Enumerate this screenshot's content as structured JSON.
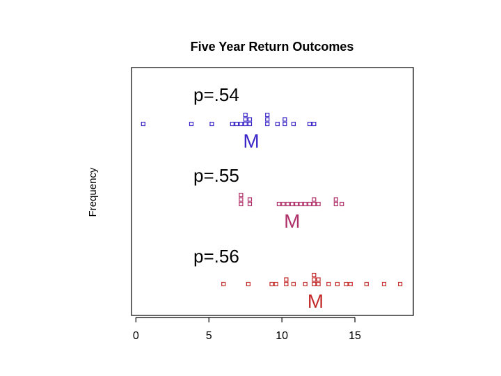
{
  "chart_data": {
    "type": "scatter",
    "title": "Five Year Return Outcomes",
    "xlabel": "",
    "ylabel": "Frequency",
    "xlim": [
      -0.3,
      19.0
    ],
    "xticks": [
      "0",
      "5",
      "10",
      "15"
    ],
    "xtick_values": [
      0,
      5,
      10,
      15
    ],
    "grid": false,
    "panels": [
      {
        "label": "p=.54",
        "median_label": "M",
        "median_x": 7.9,
        "color": "#3a26c6",
        "points": [
          {
            "x": 0.5,
            "y": 1
          },
          {
            "x": 3.8,
            "y": 1
          },
          {
            "x": 5.2,
            "y": 1
          },
          {
            "x": 6.6,
            "y": 1
          },
          {
            "x": 6.9,
            "y": 1
          },
          {
            "x": 7.2,
            "y": 1
          },
          {
            "x": 7.5,
            "y": 1
          },
          {
            "x": 7.5,
            "y": 2
          },
          {
            "x": 7.5,
            "y": 3
          },
          {
            "x": 7.8,
            "y": 1
          },
          {
            "x": 7.8,
            "y": 2
          },
          {
            "x": 9.0,
            "y": 1
          },
          {
            "x": 9.0,
            "y": 2
          },
          {
            "x": 9.0,
            "y": 3
          },
          {
            "x": 9.7,
            "y": 1
          },
          {
            "x": 10.2,
            "y": 1
          },
          {
            "x": 10.2,
            "y": 2
          },
          {
            "x": 10.8,
            "y": 1
          },
          {
            "x": 11.9,
            "y": 1
          },
          {
            "x": 12.2,
            "y": 1
          }
        ]
      },
      {
        "label": "p=.55",
        "median_label": "M",
        "median_x": 10.7,
        "color": "#b0306a",
        "points": [
          {
            "x": 7.2,
            "y": 1
          },
          {
            "x": 7.2,
            "y": 2
          },
          {
            "x": 7.2,
            "y": 3
          },
          {
            "x": 7.8,
            "y": 1
          },
          {
            "x": 7.8,
            "y": 2
          },
          {
            "x": 9.8,
            "y": 1
          },
          {
            "x": 10.1,
            "y": 1
          },
          {
            "x": 10.4,
            "y": 1
          },
          {
            "x": 10.7,
            "y": 1
          },
          {
            "x": 11.0,
            "y": 1
          },
          {
            "x": 11.3,
            "y": 1
          },
          {
            "x": 11.6,
            "y": 1
          },
          {
            "x": 11.9,
            "y": 1
          },
          {
            "x": 12.2,
            "y": 1
          },
          {
            "x": 12.2,
            "y": 2
          },
          {
            "x": 12.5,
            "y": 1
          },
          {
            "x": 13.7,
            "y": 1
          },
          {
            "x": 13.7,
            "y": 2
          },
          {
            "x": 14.1,
            "y": 1
          }
        ]
      },
      {
        "label": "p=.56",
        "median_label": "M",
        "median_x": 12.3,
        "color": "#c42c2c",
        "points": [
          {
            "x": 6.0,
            "y": 1
          },
          {
            "x": 7.7,
            "y": 1
          },
          {
            "x": 9.3,
            "y": 1
          },
          {
            "x": 9.6,
            "y": 1
          },
          {
            "x": 10.3,
            "y": 1
          },
          {
            "x": 10.3,
            "y": 2
          },
          {
            "x": 10.8,
            "y": 1
          },
          {
            "x": 11.6,
            "y": 1
          },
          {
            "x": 12.2,
            "y": 1
          },
          {
            "x": 12.2,
            "y": 2
          },
          {
            "x": 12.2,
            "y": 3
          },
          {
            "x": 12.5,
            "y": 1
          },
          {
            "x": 12.5,
            "y": 2
          },
          {
            "x": 13.2,
            "y": 1
          },
          {
            "x": 13.8,
            "y": 1
          },
          {
            "x": 14.4,
            "y": 1
          },
          {
            "x": 14.7,
            "y": 1
          },
          {
            "x": 15.8,
            "y": 1
          },
          {
            "x": 17.0,
            "y": 1
          },
          {
            "x": 18.1,
            "y": 1
          }
        ]
      }
    ]
  }
}
